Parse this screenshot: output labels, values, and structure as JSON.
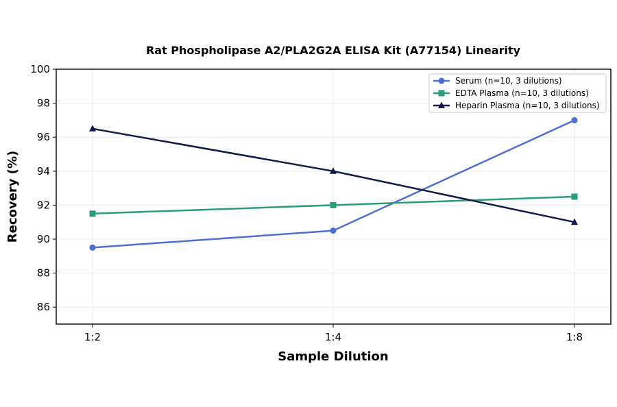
{
  "chart_data": {
    "type": "line",
    "title": "Rat Phospholipase A2/PLA2G2A ELISA Kit (A77154) Linearity",
    "xlabel": "Sample Dilution",
    "ylabel": "Recovery (%)",
    "categories": [
      "1:2",
      "1:4",
      "1:8"
    ],
    "ylim": [
      85,
      100
    ],
    "yticks": [
      86,
      88,
      90,
      92,
      94,
      96,
      98,
      100
    ],
    "grid": true,
    "legend_position": "top-right",
    "series": [
      {
        "name": "Serum (n=10, 3 dilutions)",
        "values": [
          89.5,
          90.5,
          97.0
        ],
        "color": "#4e6fd1",
        "marker": "circle"
      },
      {
        "name": "EDTA Plasma (n=10, 3 dilutions)",
        "values": [
          91.5,
          92.0,
          92.5
        ],
        "color": "#2a9d74",
        "marker": "square"
      },
      {
        "name": "Heparin Plasma (n=10, 3 dilutions)",
        "values": [
          96.5,
          94.0,
          91.0
        ],
        "color": "#0f1b45",
        "marker": "triangle"
      }
    ]
  }
}
